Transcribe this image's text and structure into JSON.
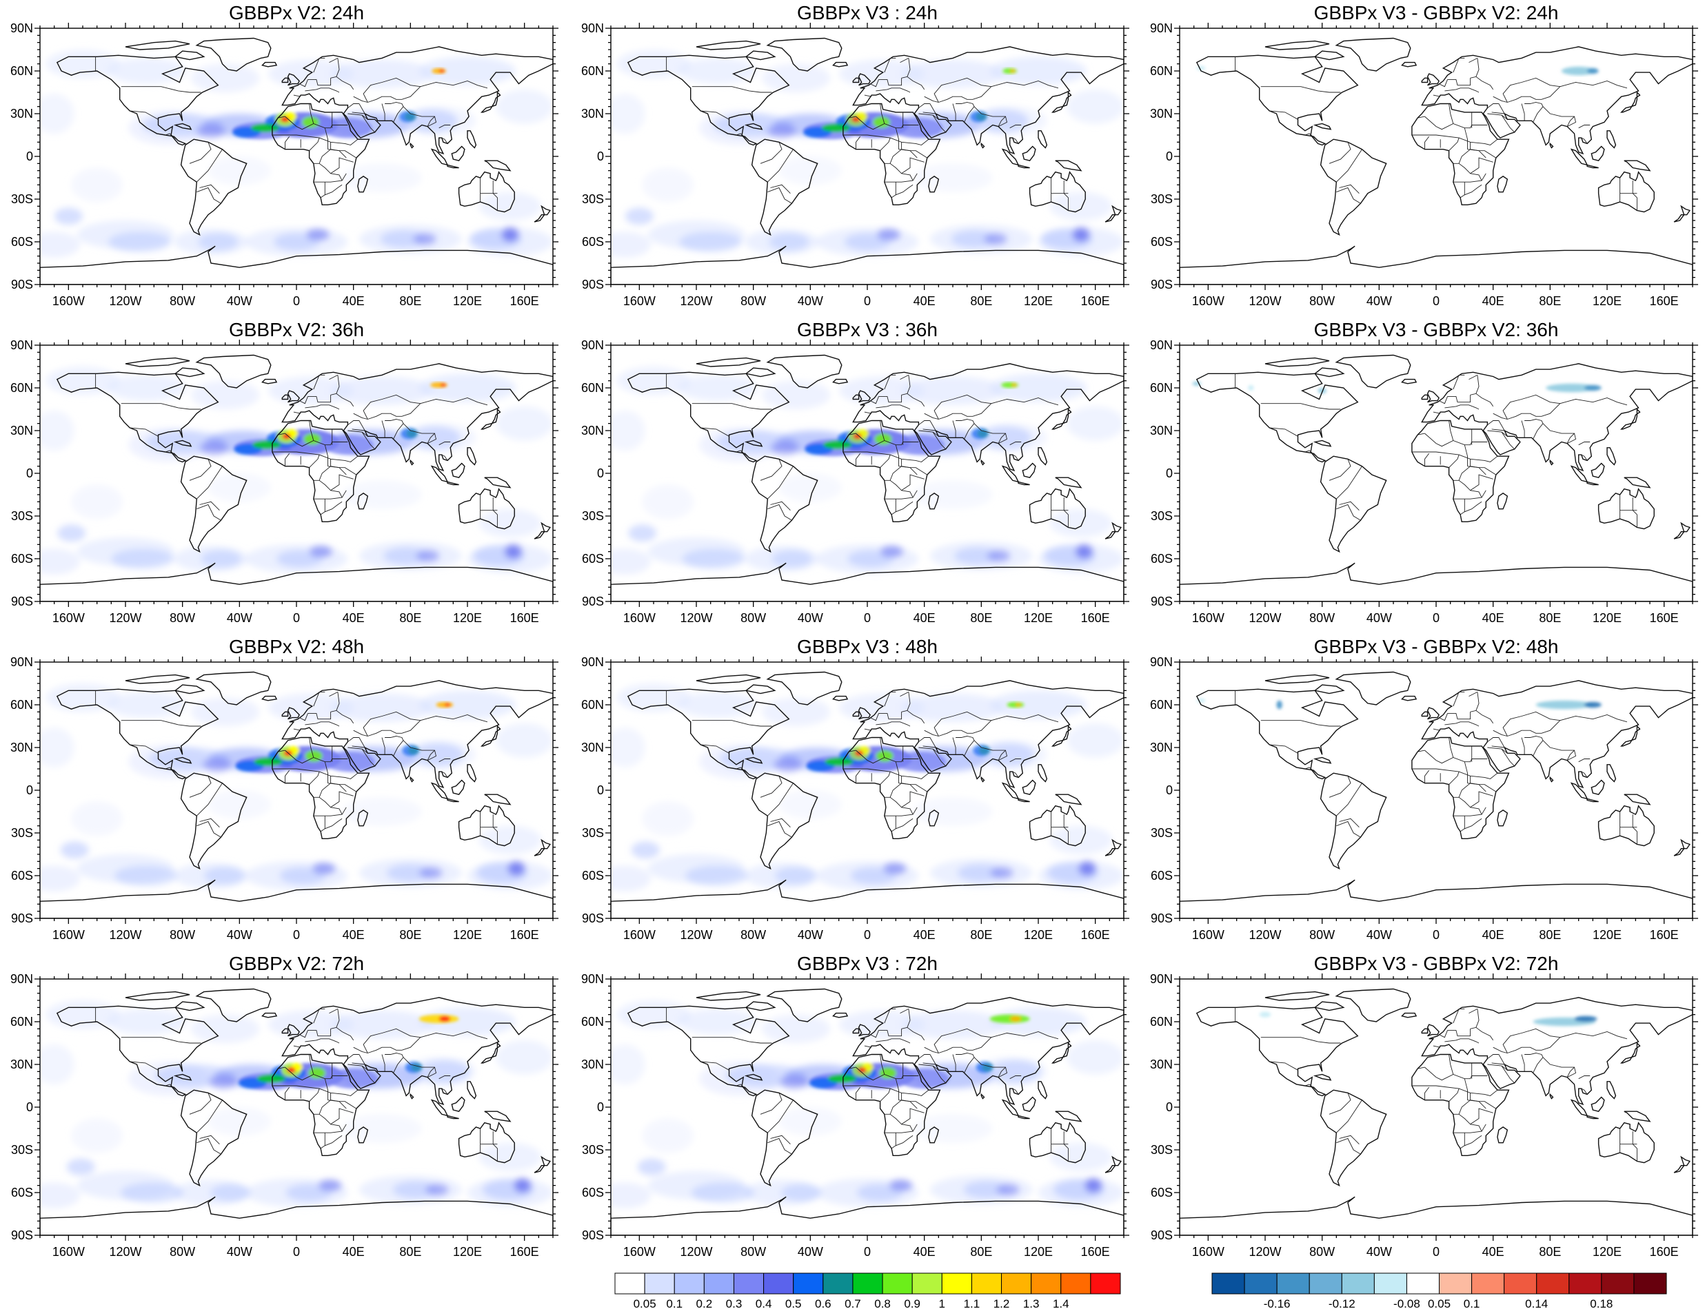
{
  "panels": [
    {
      "title": "GBBPx V2: 24h",
      "kind": "conc",
      "version": "v2",
      "hour": 24
    },
    {
      "title": "GBBPx V3 : 24h",
      "kind": "conc",
      "version": "v3",
      "hour": 24
    },
    {
      "title": "GBBPx V3 - GBBPx V2: 24h",
      "kind": "diff",
      "version": "diff",
      "hour": 24
    },
    {
      "title": "GBBPx V2: 36h",
      "kind": "conc",
      "version": "v2",
      "hour": 36
    },
    {
      "title": "GBBPx V3 : 36h",
      "kind": "conc",
      "version": "v3",
      "hour": 36
    },
    {
      "title": "GBBPx V3 - GBBPx V2: 36h",
      "kind": "diff",
      "version": "diff",
      "hour": 36
    },
    {
      "title": "GBBPx V2: 48h",
      "kind": "conc",
      "version": "v2",
      "hour": 48
    },
    {
      "title": "GBBPx V3 : 48h",
      "kind": "conc",
      "version": "v3",
      "hour": 48
    },
    {
      "title": "GBBPx V3 - GBBPx V2: 48h",
      "kind": "diff",
      "version": "diff",
      "hour": 48
    },
    {
      "title": "GBBPx V2: 72h",
      "kind": "conc",
      "version": "v2",
      "hour": 72
    },
    {
      "title": "GBBPx V3 : 72h",
      "kind": "conc",
      "version": "v3",
      "hour": 72
    },
    {
      "title": "GBBPx V3 - GBBPx V2: 72h",
      "kind": "diff",
      "version": "diff",
      "hour": 72
    }
  ],
  "lon_ticks": [
    {
      "value": -160,
      "label": "160W"
    },
    {
      "value": -120,
      "label": "120W"
    },
    {
      "value": -80,
      "label": "80W"
    },
    {
      "value": -40,
      "label": "40W"
    },
    {
      "value": 0,
      "label": "0"
    },
    {
      "value": 40,
      "label": "40E"
    },
    {
      "value": 80,
      "label": "80E"
    },
    {
      "value": 120,
      "label": "120E"
    },
    {
      "value": 160,
      "label": "160E"
    }
  ],
  "lat_ticks": [
    {
      "value": 90,
      "label": "90N"
    },
    {
      "value": 60,
      "label": "60N"
    },
    {
      "value": 30,
      "label": "30N"
    },
    {
      "value": 0,
      "label": "0"
    },
    {
      "value": -30,
      "label": "30S"
    },
    {
      "value": -60,
      "label": "60S"
    },
    {
      "value": -90,
      "label": "90S"
    }
  ],
  "colorbar_conc": {
    "colors": [
      "#ffffff",
      "#d6e0ff",
      "#b4c5ff",
      "#95a9fc",
      "#7b84f4",
      "#5b63ec",
      "#0a64f4",
      "#0c8c90",
      "#00c81e",
      "#6cee1a",
      "#b4f53c",
      "#ffff00",
      "#ffd700",
      "#ffb300",
      "#ff8f00",
      "#ff6a00",
      "#ff0f0f"
    ],
    "labels": [
      "0.05",
      "0.1",
      "0.2",
      "0.3",
      "0.4",
      "0.5",
      "0.6",
      "0.7",
      "0.8",
      "0.9",
      "1",
      "1.1",
      "1.2",
      "1.3",
      "1.4"
    ]
  },
  "colorbar_diff": {
    "colors": [
      "#08519c",
      "#2171b5",
      "#4292c6",
      "#6baed6",
      "#8fcbe0",
      "#c6ecf6",
      "#ffffff",
      "#fcbba1",
      "#fb8a6a",
      "#ef5a40",
      "#d7301f",
      "#b31218",
      "#8a0a12",
      "#67000d"
    ],
    "labels": [
      "-0.16",
      "-0.12",
      "-0.08",
      "0.05",
      "0.1",
      "0.14",
      "0.18"
    ]
  }
}
